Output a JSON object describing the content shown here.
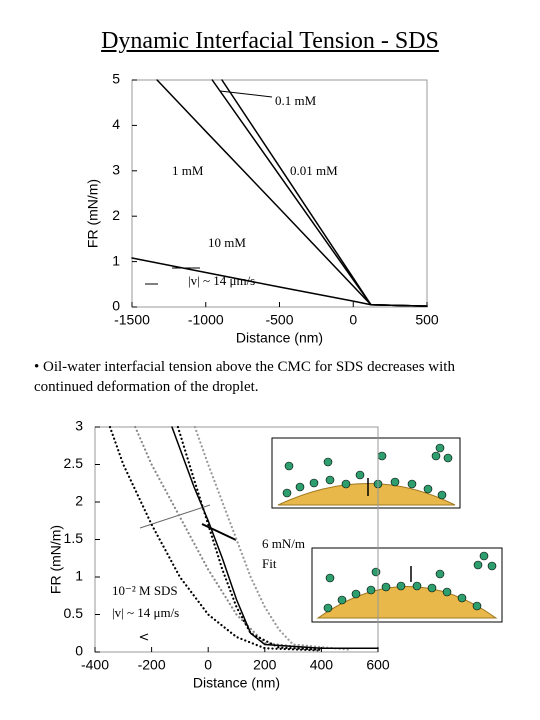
{
  "title": "Dynamic Interfacial Tension - SDS",
  "bullet": "• Oil-water interfacial tension above the CMC for SDS decreases with continued deformation of the droplet.",
  "chart_data": [
    {
      "type": "line",
      "x_label": "Distance (nm)",
      "y_label": "FR (mN/m)",
      "xlim": [
        -1500,
        500
      ],
      "xticks": [
        -1500,
        -1000,
        -500,
        0,
        500
      ],
      "ylim": [
        0,
        5
      ],
      "yticks": [
        0,
        1,
        2,
        3,
        4,
        5
      ],
      "annotations": [
        "|v| ~ 14 μm/s"
      ],
      "series": [
        {
          "name": "10 mM",
          "color": "#000000",
          "dash": "solid",
          "x": [
            -1500,
            -1000,
            -500,
            0,
            120,
            500
          ],
          "values": [
            1.08,
            0.76,
            0.44,
            0.13,
            0.05,
            0.02
          ]
        },
        {
          "name": "1 mM",
          "color": "#000000",
          "dash": "solid",
          "x": [
            -1330,
            -1000,
            -500,
            0,
            120,
            500
          ],
          "values": [
            5,
            3.87,
            2.17,
            0.46,
            0.05,
            0.02
          ]
        },
        {
          "name": "0.1 mM",
          "color": "#000000",
          "dash": "solid",
          "x": [
            -956,
            -500,
            0,
            120,
            500
          ],
          "values": [
            5,
            2.9,
            0.6,
            0.05,
            0.02
          ]
        },
        {
          "name": "0.01 mM",
          "color": "#000000",
          "dash": "solid",
          "x": [
            -890,
            -500,
            0,
            120,
            500
          ],
          "values": [
            5,
            3.09,
            0.64,
            0.05,
            0.02
          ]
        }
      ]
    },
    {
      "type": "line",
      "x_label": "Distance (nm)",
      "y_label": "FR (mN/m)",
      "xlim": [
        -400,
        600
      ],
      "xticks": [
        -400,
        -200,
        0,
        200,
        400,
        600
      ],
      "ylim": [
        0,
        3
      ],
      "yticks": [
        0,
        0.5,
        1,
        1.5,
        2,
        2.5,
        3
      ],
      "annotations": [
        "10⁻² M SDS",
        "|v| ~ 14 μm/s",
        "6 mN/m",
        "Fit"
      ],
      "series": [
        {
          "color": "#000000",
          "dash": "dotted",
          "x": [
            -347,
            -300,
            -200,
            -100,
            0,
            100,
            200,
            400
          ],
          "values": [
            3,
            2.5,
            1.7,
            1.0,
            0.5,
            0.2,
            0.05,
            0.02
          ]
        },
        {
          "color": "#888888",
          "dash": "dotted",
          "x": [
            -258,
            -200,
            -100,
            0,
            100,
            200,
            400
          ],
          "values": [
            3,
            2.5,
            1.8,
            1.1,
            0.5,
            0.12,
            0.03
          ]
        },
        {
          "color": "#000000",
          "dash": "dotted",
          "x": [
            -107,
            -50,
            0,
            50,
            100,
            150,
            250,
            400
          ],
          "values": [
            3,
            2.3,
            1.7,
            1.1,
            0.6,
            0.25,
            0.06,
            0.03
          ]
        },
        {
          "color": "#999999",
          "dash": "dotted",
          "x": [
            -47,
            0,
            50,
            100,
            150,
            200,
            250,
            300,
            500
          ],
          "values": [
            3,
            2.5,
            2.0,
            1.5,
            1.0,
            0.6,
            0.3,
            0.1,
            0.03
          ]
        },
        {
          "color": "#000000",
          "dash": "solid",
          "x": [
            -128,
            -50,
            0,
            50,
            100,
            150,
            200,
            400,
            600
          ],
          "values": [
            3,
            2.2,
            1.75,
            1.25,
            0.7,
            0.25,
            0.1,
            0.05,
            0.05
          ]
        }
      ]
    }
  ]
}
